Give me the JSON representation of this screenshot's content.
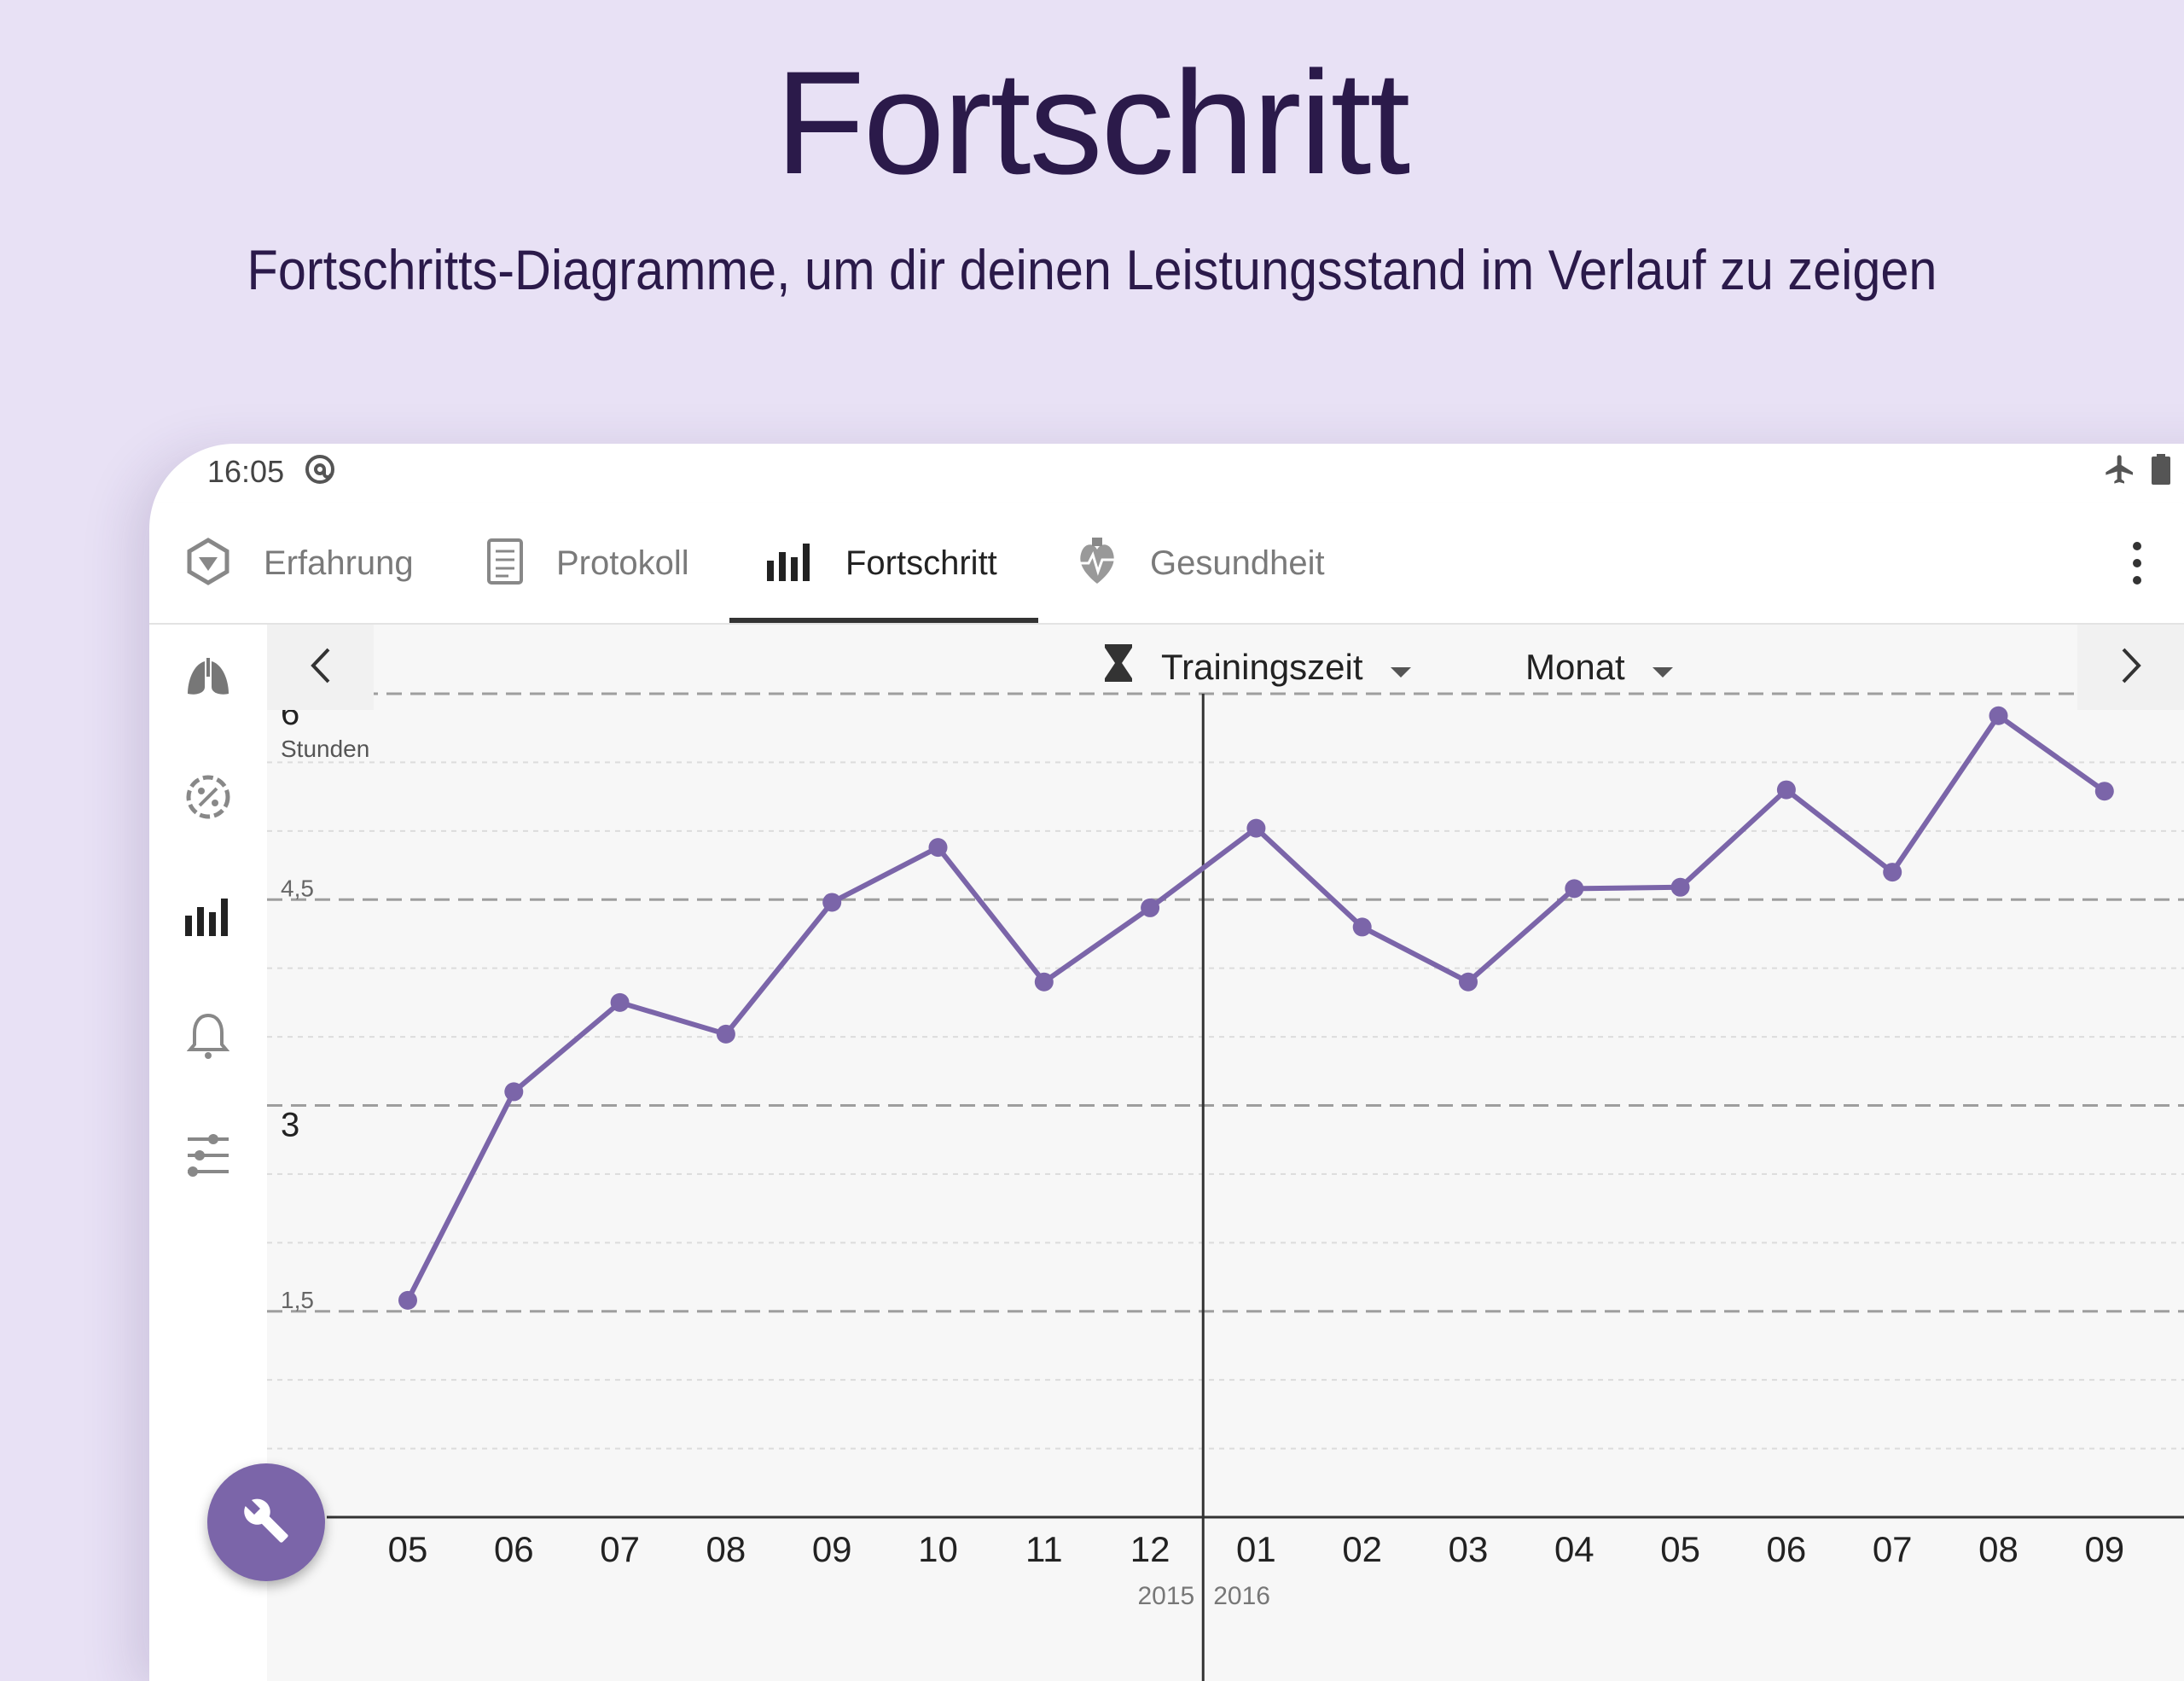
{
  "promo": {
    "title": "Fortschritt",
    "subtitle": "Fortschritts-Diagramme, um dir deinen Leistungsstand im Verlauf zu zeigen"
  },
  "status_bar": {
    "time": "16:05",
    "icons": [
      "at-sign-icon",
      "airplane-icon",
      "battery-icon"
    ]
  },
  "tabs": [
    {
      "label": "Erfahrung",
      "icon": "experience-icon",
      "active": false
    },
    {
      "label": "Protokoll",
      "icon": "log-icon",
      "active": false
    },
    {
      "label": "Fortschritt",
      "icon": "bar-chart-icon",
      "active": true
    },
    {
      "label": "Gesundheit",
      "icon": "heart-icon",
      "active": false
    }
  ],
  "sidebar": {
    "items": [
      "lungs-icon",
      "gauge-icon",
      "bar-chart-icon",
      "bell-icon",
      "sliders-icon"
    ]
  },
  "selectors": {
    "metric": "Trainingszeit",
    "period": "Monat"
  },
  "colors": {
    "accent": "#7b65a9",
    "line": "#7b65a9",
    "grid": "#bdbdbd",
    "axis": "#333333"
  },
  "chart_data": {
    "type": "line",
    "title": "",
    "ylabel": "Stunden",
    "y_ticks": [
      {
        "value": 6,
        "label": "6"
      },
      {
        "value": 4.5,
        "label": "4,5"
      },
      {
        "value": 3,
        "label": "3"
      },
      {
        "value": 1.5,
        "label": "1,5"
      }
    ],
    "ylim": [
      0,
      6
    ],
    "categories": [
      "05",
      "06",
      "07",
      "08",
      "09",
      "10",
      "11",
      "12",
      "01",
      "02",
      "03",
      "04",
      "05",
      "06",
      "07",
      "08",
      "09"
    ],
    "values": [
      1.58,
      3.1,
      3.75,
      3.52,
      4.48,
      4.88,
      3.9,
      4.44,
      5.02,
      4.3,
      3.9,
      4.58,
      4.59,
      5.3,
      4.7,
      5.84,
      5.29
    ],
    "year_labels": [
      "2015",
      "2016"
    ],
    "year_divider_after_index": 7
  }
}
